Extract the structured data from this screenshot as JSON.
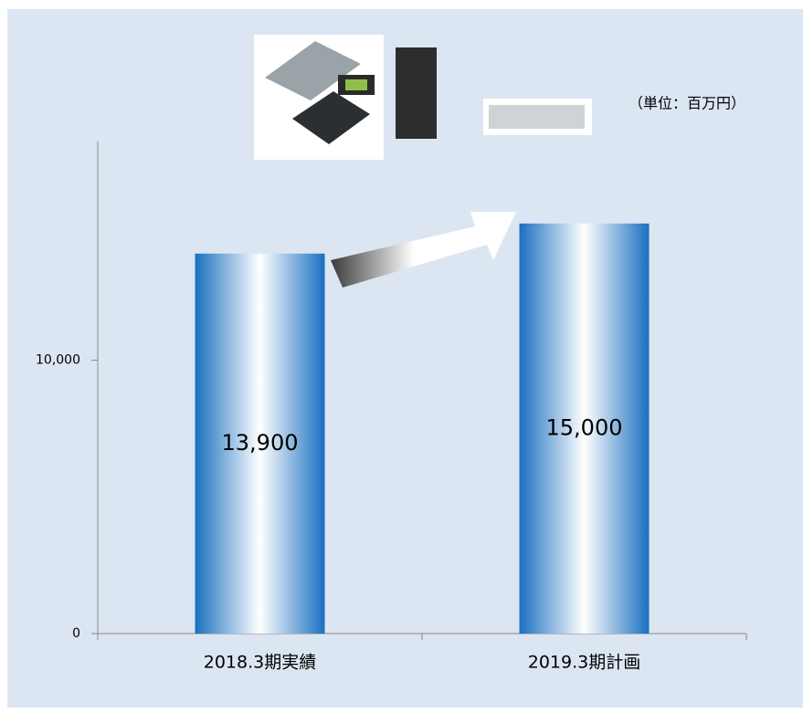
{
  "chart_data": {
    "type": "bar",
    "subtitle": "（単位：百万円）",
    "categories": [
      "2018.3期実績",
      "2019.3期計画"
    ],
    "values": [
      13900,
      15000
    ],
    "value_labels": [
      "13,900",
      "15,000"
    ],
    "color": "#1a6fc0",
    "ylim": [
      0,
      18000
    ],
    "yticks": [
      0,
      {
        "value": 10000,
        "label": "10,000"
      }
    ]
  }
}
